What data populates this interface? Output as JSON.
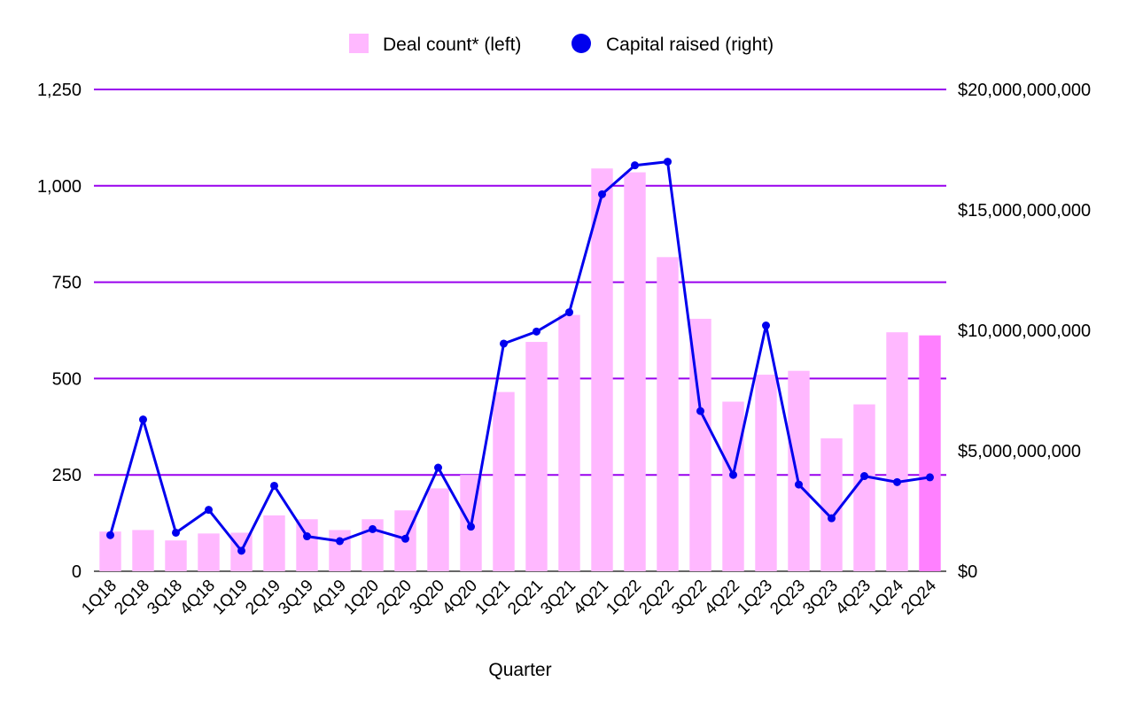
{
  "chart_data": {
    "type": "bar",
    "categories": [
      "1Q18",
      "2Q18",
      "3Q18",
      "4Q18",
      "1Q19",
      "2Q19",
      "3Q19",
      "4Q19",
      "1Q20",
      "2Q20",
      "3Q20",
      "4Q20",
      "1Q21",
      "2Q21",
      "3Q21",
      "4Q21",
      "1Q22",
      "2Q22",
      "3Q22",
      "4Q22",
      "1Q23",
      "2Q23",
      "3Q23",
      "4Q23",
      "1Q24",
      "2Q24"
    ],
    "series": [
      {
        "name": "Deal count* (left)",
        "type": "bar",
        "axis": "left",
        "color": "#ffb8ff",
        "highlight_last_color": "#ff80ff",
        "values": [
          103,
          107,
          80,
          98,
          100,
          145,
          135,
          107,
          135,
          158,
          215,
          250,
          465,
          595,
          665,
          1045,
          1035,
          815,
          655,
          440,
          510,
          520,
          345,
          433,
          620,
          612
        ]
      },
      {
        "name": "Capital raised (right)",
        "type": "line",
        "axis": "right",
        "color": "#0000ee",
        "values": [
          1500000000,
          6300000000,
          1600000000,
          2550000000,
          850000000,
          3550000000,
          1450000000,
          1250000000,
          1750000000,
          1350000000,
          4300000000,
          1850000000,
          9450000000,
          9950000000,
          10750000000,
          15650000000,
          16850000000,
          17000000000,
          6650000000,
          4000000000,
          10200000000,
          3600000000,
          2200000000,
          3950000000,
          3700000000,
          3900000000
        ]
      }
    ],
    "xlabel": "Quarter",
    "ylabel_left": "",
    "ylabel_right": "",
    "ylim_left": [
      0,
      1250
    ],
    "ylim_right": [
      0,
      20000000000
    ],
    "yticks_left": [
      "0",
      "250",
      "500",
      "750",
      "1,000",
      "1,250"
    ],
    "yticks_right": [
      "$0",
      "$5,000,000,000",
      "$10,000,000,000",
      "$15,000,000,000",
      "$20,000,000,000"
    ],
    "gridlines": true,
    "grid_color": "#9900ee",
    "legend_position": "top-center"
  }
}
